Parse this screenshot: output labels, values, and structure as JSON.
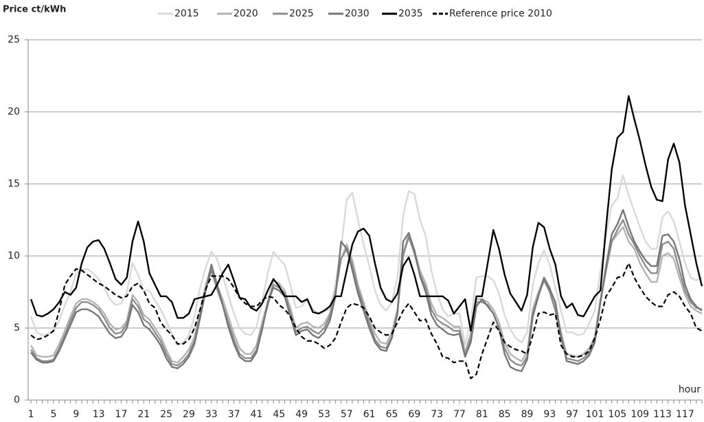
{
  "chart_data": {
    "type": "line",
    "y_label": "Price ct/kWh",
    "x_label": "hour",
    "x": [
      1,
      2,
      3,
      4,
      5,
      6,
      7,
      8,
      9,
      10,
      11,
      12,
      13,
      14,
      15,
      16,
      17,
      18,
      19,
      20,
      21,
      22,
      23,
      24,
      25,
      26,
      27,
      28,
      29,
      30,
      31,
      32,
      33,
      34,
      35,
      36,
      37,
      38,
      39,
      40,
      41,
      42,
      43,
      44,
      45,
      46,
      47,
      48,
      49,
      50,
      51,
      52,
      53,
      54,
      55,
      56,
      57,
      58,
      59,
      60,
      61,
      62,
      63,
      64,
      65,
      66,
      67,
      68,
      69,
      70,
      71,
      72,
      73,
      74,
      75,
      76,
      77,
      78,
      79,
      80,
      81,
      82,
      83,
      84,
      85,
      86,
      87,
      88,
      89,
      90,
      91,
      92,
      93,
      94,
      95,
      96,
      97,
      98,
      99,
      100,
      101,
      102,
      103,
      104,
      105,
      106,
      107,
      108,
      109,
      110,
      111,
      112,
      113,
      114,
      115,
      116,
      117,
      118,
      119,
      120
    ],
    "xlim": [
      0.5,
      120
    ],
    "xticks": [
      1,
      5,
      9,
      13,
      17,
      21,
      25,
      29,
      33,
      37,
      41,
      45,
      49,
      53,
      57,
      61,
      65,
      69,
      73,
      77,
      81,
      85,
      89,
      93,
      97,
      101,
      105,
      109,
      113,
      117
    ],
    "ylim": [
      0,
      25
    ],
    "yticks": [
      0,
      5,
      10,
      15,
      20,
      25
    ],
    "grid": true,
    "series": [
      {
        "name": "2015",
        "color": "#d9d9d9",
        "dashed": false,
        "values": [
          5.8,
          4.7,
          4.5,
          4.6,
          4.8,
          5.5,
          6.6,
          7.5,
          8.8,
          9.0,
          9.1,
          8.8,
          8.4,
          7.8,
          7.0,
          6.6,
          6.7,
          7.5,
          9.5,
          8.7,
          7.6,
          7.6,
          6.9,
          6.3,
          5.5,
          4.6,
          3.8,
          4.0,
          4.5,
          5.8,
          7.8,
          9.2,
          10.3,
          9.8,
          8.6,
          7.3,
          6.0,
          5.0,
          4.6,
          4.5,
          5.1,
          6.8,
          8.8,
          10.3,
          9.8,
          9.4,
          8.0,
          6.4,
          6.5,
          7.0,
          6.3,
          6.0,
          6.2,
          6.3,
          8.0,
          10.5,
          13.9,
          14.4,
          12.5,
          10.8,
          9.3,
          7.6,
          6.6,
          6.2,
          6.8,
          8.5,
          12.8,
          14.5,
          14.3,
          12.5,
          11.4,
          9.0,
          7.4,
          6.3,
          5.8,
          6.0,
          6.0,
          3.8,
          5.5,
          8.5,
          8.6,
          8.6,
          8.3,
          7.4,
          5.9,
          4.9,
          4.3,
          4.0,
          4.7,
          8.0,
          9.5,
          10.4,
          9.4,
          7.8,
          6.2,
          4.7,
          4.7,
          4.5,
          4.6,
          5.3,
          6.2,
          9.0,
          11.5,
          13.5,
          14.0,
          15.6,
          14.2,
          13.1,
          12.0,
          11.0,
          10.5,
          10.5,
          12.7,
          13.1,
          12.4,
          11.0,
          9.5,
          8.5,
          8.3,
          8.5
        ]
      },
      {
        "name": "2020",
        "color": "#b3b3b3",
        "dashed": false,
        "values": [
          3.8,
          3.1,
          3.0,
          3.0,
          3.1,
          3.9,
          4.8,
          5.8,
          6.7,
          7.0,
          7.0,
          6.8,
          6.5,
          6.0,
          5.3,
          4.9,
          5.0,
          5.5,
          7.3,
          6.8,
          5.9,
          5.6,
          5.0,
          4.4,
          3.5,
          2.7,
          2.6,
          3.0,
          3.5,
          4.4,
          6.2,
          8.0,
          9.3,
          8.0,
          7.0,
          5.8,
          4.6,
          3.6,
          3.2,
          3.2,
          3.8,
          5.4,
          6.8,
          8.3,
          8.1,
          7.6,
          6.4,
          5.0,
          5.3,
          5.4,
          5.1,
          5.0,
          5.3,
          6.0,
          7.6,
          9.8,
          10.8,
          9.7,
          8.0,
          6.8,
          5.6,
          4.6,
          4.0,
          3.9,
          4.7,
          6.3,
          10.2,
          11.5,
          10.4,
          9.0,
          8.1,
          6.7,
          5.9,
          5.7,
          5.4,
          5.1,
          5.1,
          3.3,
          4.6,
          7.0,
          7.0,
          6.8,
          6.3,
          5.4,
          4.0,
          3.2,
          2.9,
          2.7,
          3.3,
          6.3,
          7.5,
          8.5,
          7.8,
          6.5,
          4.7,
          3.2,
          3.1,
          3.0,
          3.2,
          3.6,
          4.4,
          7.0,
          9.0,
          11.0,
          11.5,
          12.0,
          11.0,
          10.5,
          9.5,
          8.8,
          8.2,
          8.2,
          10.0,
          10.2,
          9.8,
          8.5,
          7.3,
          6.5,
          6.2,
          6.0
        ]
      },
      {
        "name": "2025",
        "color": "#8c8c8c",
        "dashed": false,
        "values": [
          3.5,
          2.9,
          2.7,
          2.7,
          2.8,
          3.6,
          4.5,
          5.5,
          6.4,
          6.8,
          6.8,
          6.6,
          6.3,
          5.7,
          5.0,
          4.6,
          4.7,
          5.3,
          7.0,
          6.5,
          5.6,
          5.3,
          4.7,
          4.1,
          3.2,
          2.5,
          2.4,
          2.7,
          3.2,
          4.1,
          5.9,
          7.7,
          9.0,
          7.7,
          6.6,
          5.4,
          4.2,
          3.2,
          2.9,
          2.9,
          3.5,
          5.1,
          6.6,
          8.0,
          7.8,
          7.4,
          6.1,
          4.7,
          5.0,
          5.1,
          4.8,
          4.6,
          5.0,
          5.8,
          7.4,
          9.8,
          10.5,
          9.4,
          7.7,
          6.5,
          5.3,
          4.2,
          3.7,
          3.6,
          4.4,
          6.1,
          10.0,
          11.3,
          10.2,
          8.7,
          7.8,
          6.3,
          5.6,
          5.3,
          5.1,
          4.8,
          4.8,
          3.1,
          4.3,
          6.8,
          6.8,
          6.6,
          6.0,
          5.0,
          3.6,
          2.8,
          2.5,
          2.4,
          3.0,
          6.0,
          7.3,
          8.3,
          7.5,
          6.2,
          4.3,
          2.9,
          2.8,
          2.7,
          2.9,
          3.3,
          4.2,
          6.8,
          9.0,
          11.0,
          11.8,
          12.5,
          11.5,
          10.8,
          10.0,
          9.3,
          8.8,
          8.8,
          10.8,
          11.0,
          10.5,
          9.0,
          7.6,
          6.8,
          6.4,
          6.3
        ]
      },
      {
        "name": "2030",
        "color": "#767676",
        "dashed": false,
        "values": [
          3.3,
          2.8,
          2.6,
          2.6,
          2.7,
          3.4,
          4.3,
          5.2,
          6.1,
          6.3,
          6.3,
          6.1,
          5.8,
          5.2,
          4.6,
          4.3,
          4.4,
          5.0,
          6.6,
          6.1,
          5.2,
          4.9,
          4.4,
          3.8,
          2.9,
          2.3,
          2.2,
          2.5,
          3.0,
          3.9,
          5.7,
          7.6,
          9.4,
          8.0,
          6.6,
          5.1,
          3.9,
          3.0,
          2.7,
          2.7,
          3.3,
          4.9,
          6.8,
          7.8,
          7.6,
          7.2,
          5.8,
          4.5,
          4.8,
          4.9,
          4.5,
          4.3,
          4.7,
          5.5,
          7.2,
          11.0,
          10.5,
          9.0,
          7.4,
          6.2,
          5.0,
          4.0,
          3.5,
          3.4,
          4.3,
          6.0,
          11.0,
          11.6,
          10.4,
          8.6,
          7.5,
          5.9,
          5.2,
          4.9,
          4.6,
          4.5,
          4.6,
          3.0,
          4.0,
          6.5,
          7.0,
          6.5,
          6.0,
          5.0,
          3.2,
          2.3,
          2.1,
          2.0,
          2.8,
          5.8,
          7.2,
          8.5,
          7.7,
          6.8,
          4.5,
          2.7,
          2.6,
          2.5,
          2.7,
          3.1,
          4.0,
          6.8,
          9.3,
          11.5,
          12.2,
          13.2,
          12.0,
          11.0,
          10.3,
          9.7,
          9.3,
          9.3,
          11.4,
          11.5,
          11.0,
          9.8,
          8.0,
          7.0,
          6.5,
          6.2
        ]
      },
      {
        "name": "2035",
        "color": "#000000",
        "dashed": false,
        "values": [
          7.0,
          5.9,
          5.8,
          6.0,
          6.3,
          6.8,
          7.5,
          7.3,
          7.8,
          9.5,
          10.6,
          11.0,
          11.1,
          10.5,
          9.5,
          8.4,
          8.0,
          8.5,
          11.0,
          12.4,
          11.0,
          8.8,
          8.0,
          7.2,
          7.2,
          6.8,
          5.7,
          5.7,
          6.0,
          7.0,
          7.1,
          7.2,
          7.3,
          8.0,
          8.8,
          9.4,
          8.3,
          7.1,
          7.0,
          6.4,
          6.2,
          6.7,
          7.6,
          8.4,
          7.9,
          7.2,
          7.2,
          7.2,
          6.8,
          7.0,
          6.1,
          6.0,
          6.2,
          6.5,
          7.2,
          7.2,
          9.0,
          10.8,
          11.7,
          11.9,
          11.4,
          9.5,
          7.8,
          7.0,
          6.8,
          7.4,
          9.3,
          9.9,
          8.7,
          7.2,
          7.2,
          7.2,
          7.2,
          7.2,
          6.9,
          6.0,
          6.5,
          7.0,
          4.8,
          7.2,
          7.2,
          9.5,
          11.8,
          10.5,
          8.7,
          7.4,
          6.8,
          6.2,
          7.3,
          10.6,
          12.3,
          12.0,
          10.5,
          9.4,
          7.2,
          6.4,
          6.7,
          5.9,
          5.8,
          6.5,
          7.2,
          7.6,
          12.0,
          16.0,
          18.2,
          18.6,
          21.1,
          19.5,
          18.0,
          16.3,
          14.8,
          13.9,
          13.8,
          16.7,
          17.8,
          16.5,
          13.5,
          11.5,
          9.5,
          7.9
        ]
      },
      {
        "name": "Reference price 2010",
        "color": "#000000",
        "dashed": true,
        "values": [
          4.5,
          4.2,
          4.3,
          4.5,
          4.8,
          6.2,
          8.0,
          8.6,
          9.1,
          9.0,
          8.7,
          8.4,
          8.1,
          7.9,
          7.6,
          7.3,
          7.1,
          7.2,
          7.9,
          8.1,
          7.6,
          6.7,
          6.4,
          5.4,
          4.9,
          4.5,
          3.9,
          3.9,
          4.2,
          5.0,
          6.3,
          7.7,
          8.6,
          8.6,
          8.6,
          8.4,
          7.8,
          7.1,
          6.7,
          6.5,
          6.5,
          6.9,
          7.2,
          7.1,
          6.6,
          6.3,
          5.8,
          5.0,
          4.4,
          4.1,
          4.1,
          3.9,
          3.6,
          3.8,
          4.3,
          5.4,
          6.4,
          6.7,
          6.6,
          6.4,
          5.8,
          5.0,
          4.7,
          4.5,
          4.6,
          5.4,
          6.2,
          6.7,
          6.1,
          5.5,
          5.6,
          4.6,
          3.9,
          3.0,
          2.9,
          2.6,
          2.7,
          2.7,
          1.5,
          1.8,
          3.2,
          4.3,
          5.4,
          4.8,
          4.0,
          3.7,
          3.5,
          3.4,
          3.2,
          4.5,
          6.0,
          6.1,
          5.9,
          6.0,
          3.8,
          3.2,
          3.0,
          3.0,
          3.1,
          3.4,
          4.3,
          5.6,
          7.2,
          7.8,
          8.5,
          8.6,
          9.5,
          8.5,
          7.8,
          7.2,
          6.8,
          6.5,
          6.5,
          7.3,
          7.5,
          7.2,
          6.5,
          6.0,
          5.0,
          4.8
        ]
      }
    ]
  }
}
